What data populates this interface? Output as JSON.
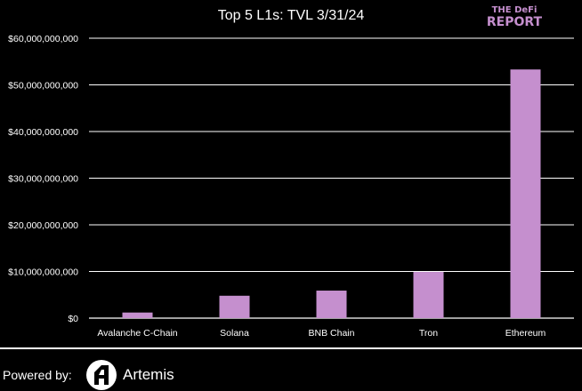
{
  "chart_data": {
    "type": "bar",
    "title": "Top 5 L1s: TVL 3/31/24",
    "categories": [
      "Avalanche C-Chain",
      "Solana",
      "BNB Chain",
      "Tron",
      "Ethereum"
    ],
    "values": [
      1200000000,
      4800000000,
      5900000000,
      9900000000,
      53300000000
    ],
    "ylim": [
      0,
      60000000000
    ],
    "y_ticks": [
      "$0",
      "$10,000,000,000",
      "$20,000,000,000",
      "$30,000,000,000",
      "$40,000,000,000",
      "$50,000,000,000",
      "$60,000,000,000"
    ],
    "grid": true,
    "bar_color": "#c58fce",
    "xlabel": "",
    "ylabel": ""
  },
  "logo": {
    "line1": "THE DeFi",
    "line2": "REPORT"
  },
  "footer": {
    "powered_by": "Powered by:",
    "brand": "Artemis",
    "brand_icon": "artemis-logo-icon"
  }
}
